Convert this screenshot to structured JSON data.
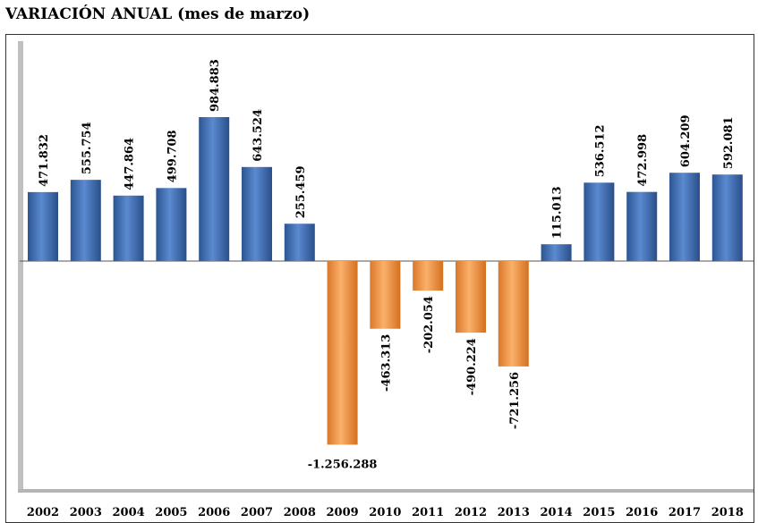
{
  "chart_data": {
    "type": "bar",
    "title": "VARIACIÓN ANUAL (mes de marzo)",
    "xlabel": "",
    "ylabel": "",
    "categories": [
      "2002",
      "2003",
      "2004",
      "2005",
      "2006",
      "2007",
      "2008",
      "2009",
      "2010",
      "2011",
      "2012",
      "2013",
      "2014",
      "2015",
      "2016",
      "2017",
      "2018"
    ],
    "values": [
      471832,
      555754,
      447864,
      499708,
      984883,
      643524,
      255459,
      -1256288,
      -463313,
      -202054,
      -490224,
      -721256,
      115013,
      536512,
      472998,
      604209,
      592081
    ],
    "value_labels": [
      "471.832",
      "555.754",
      "447.864",
      "499.708",
      "984.883",
      "643.524",
      "255.459",
      "-1.256.288",
      "-463.313",
      "-202.054",
      "-490.224",
      "-721.256",
      "115.013",
      "536.512",
      "472.998",
      "604.209",
      "592.081"
    ],
    "colors": {
      "positive": "#3d6db3",
      "negative": "#f0953f"
    },
    "grid": false,
    "legend": "none"
  }
}
